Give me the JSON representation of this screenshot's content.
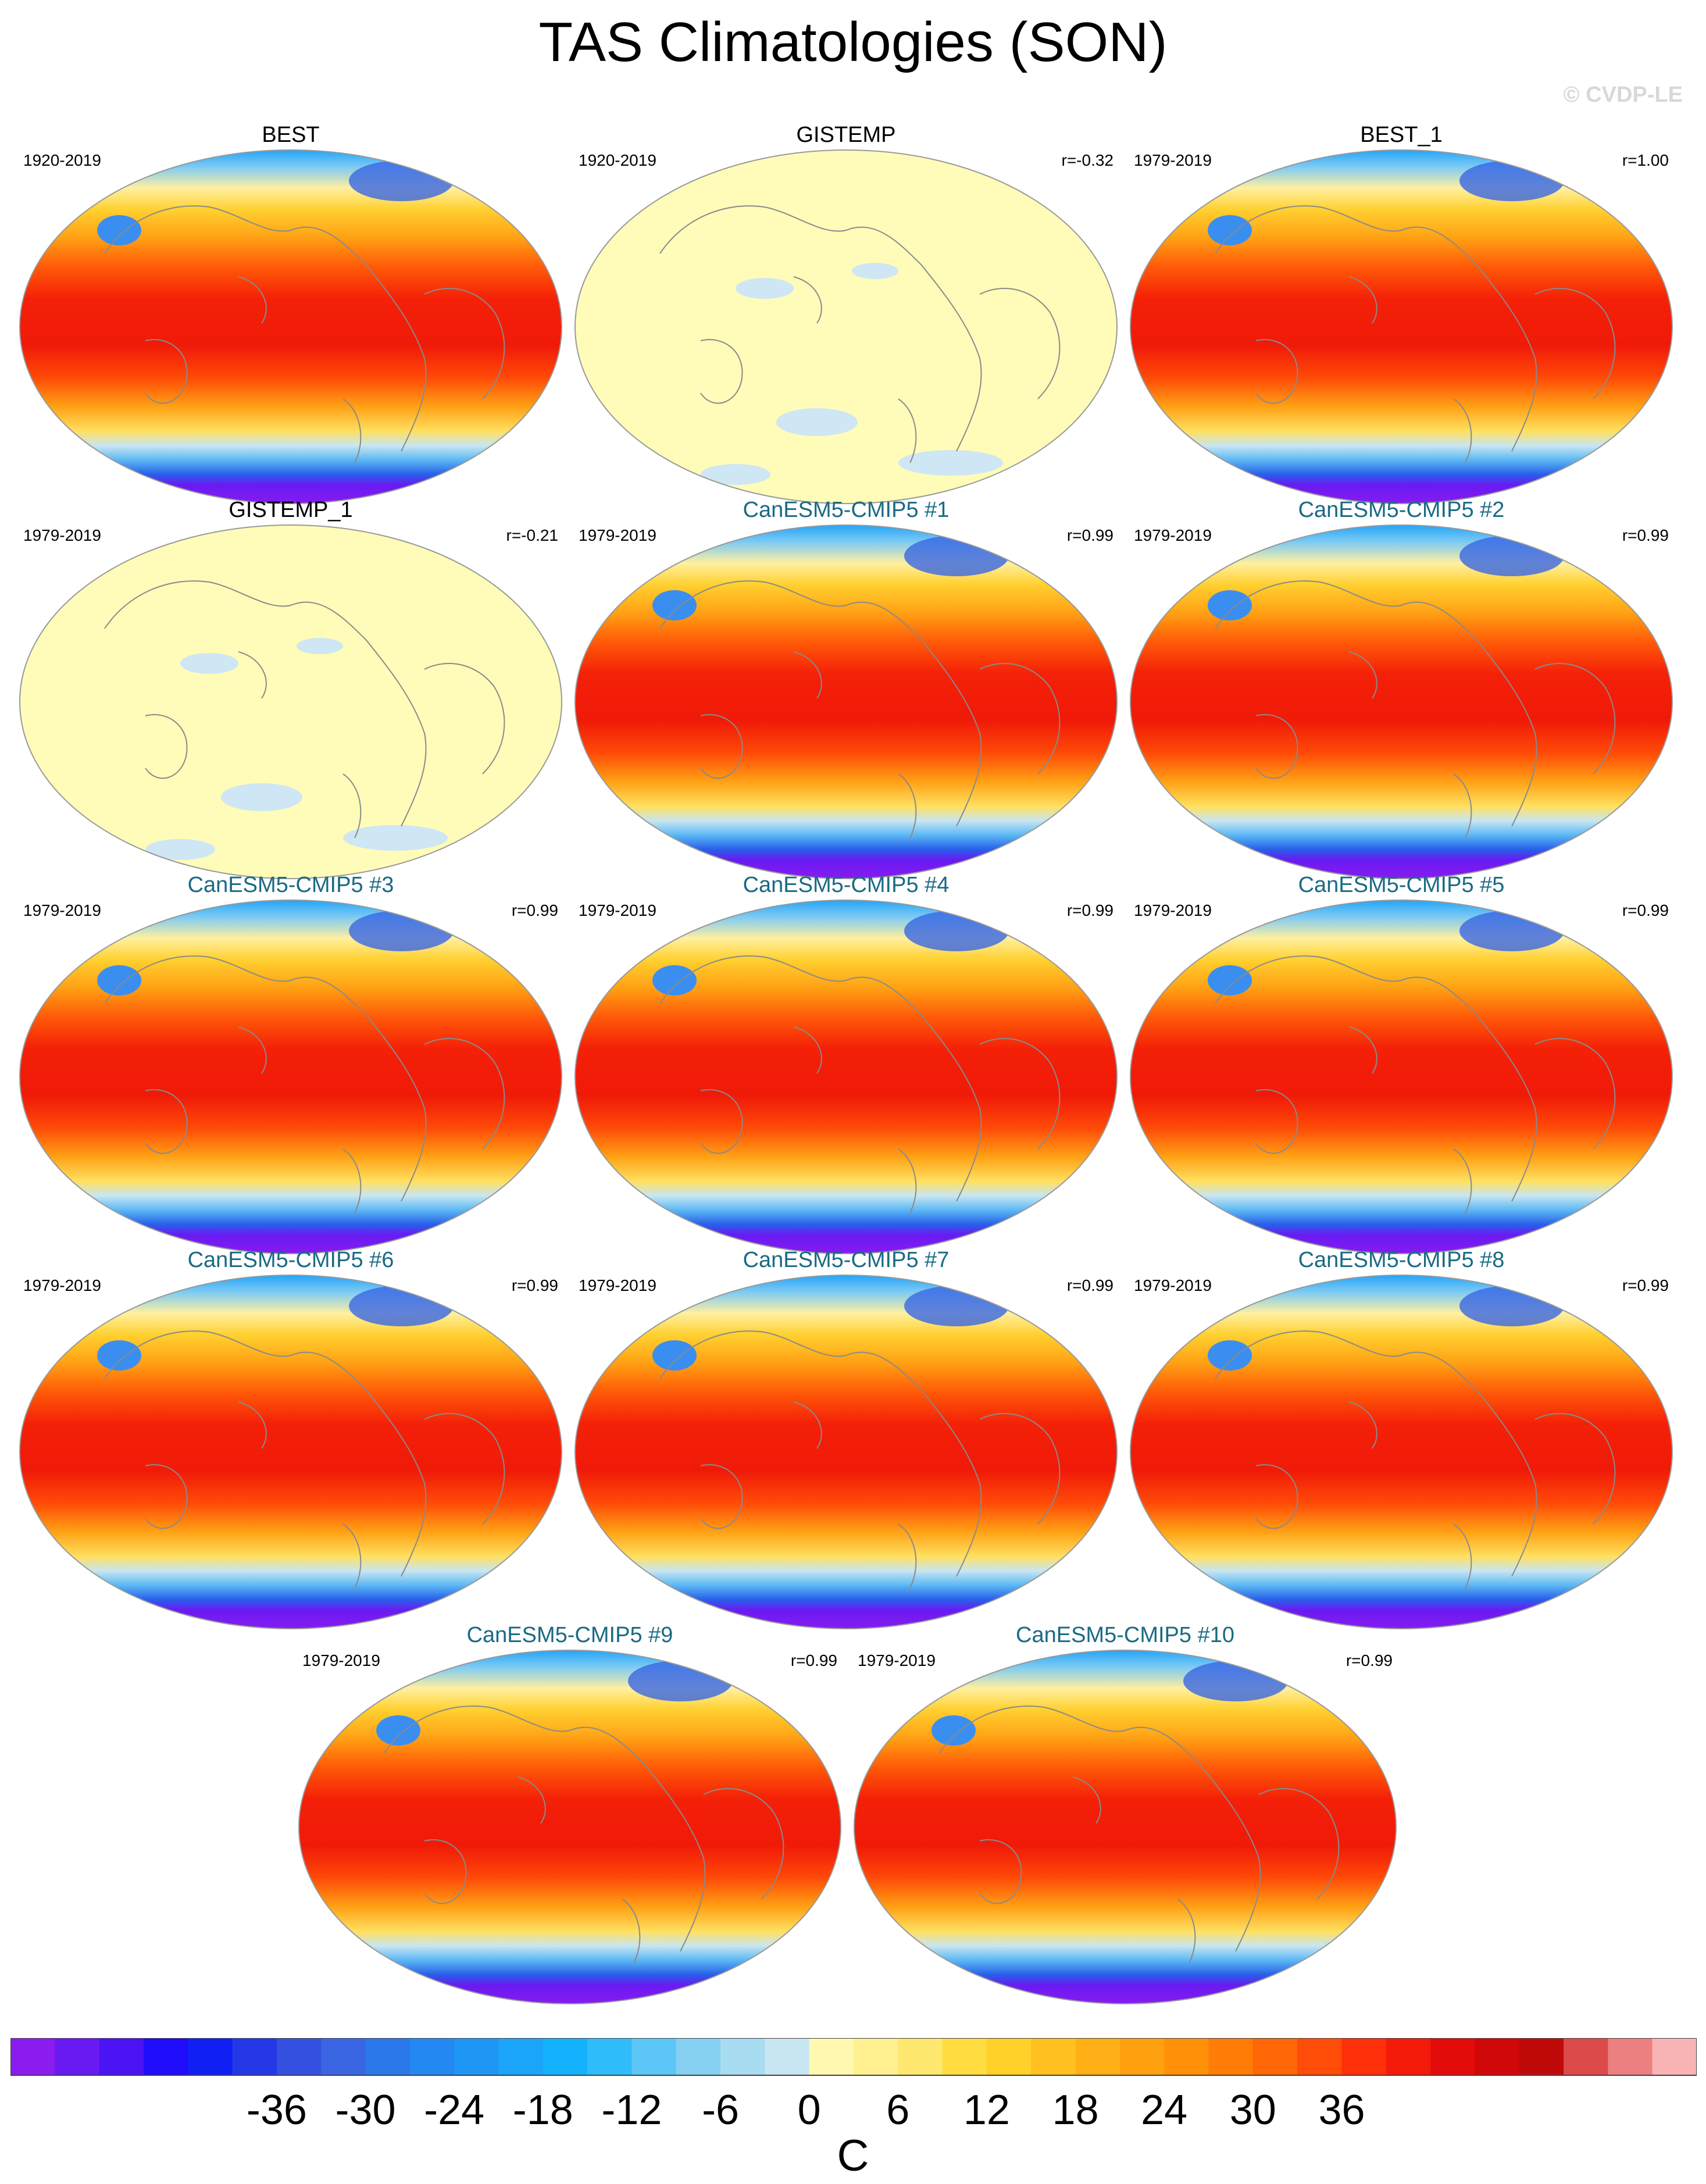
{
  "title": "TAS Climatologies (SON)",
  "credit": "© CVDP-LE",
  "panels": [
    {
      "name": "BEST",
      "period": "1920-2019",
      "r": "",
      "kind": "obs",
      "field": "full"
    },
    {
      "name": "GISTEMP",
      "period": "1920-2019",
      "r": "r=-0.32",
      "kind": "obs",
      "field": "sparse"
    },
    {
      "name": "BEST_1",
      "period": "1979-2019",
      "r": "r=1.00",
      "kind": "obs",
      "field": "full"
    },
    {
      "name": "GISTEMP_1",
      "period": "1979-2019",
      "r": "r=-0.21",
      "kind": "obs",
      "field": "sparse"
    },
    {
      "name": "CanESM5-CMIP5 #1",
      "period": "1979-2019",
      "r": "r=0.99",
      "kind": "model",
      "field": "full"
    },
    {
      "name": "CanESM5-CMIP5 #2",
      "period": "1979-2019",
      "r": "r=0.99",
      "kind": "model",
      "field": "full"
    },
    {
      "name": "CanESM5-CMIP5 #3",
      "period": "1979-2019",
      "r": "r=0.99",
      "kind": "model",
      "field": "full"
    },
    {
      "name": "CanESM5-CMIP5 #4",
      "period": "1979-2019",
      "r": "r=0.99",
      "kind": "model",
      "field": "full"
    },
    {
      "name": "CanESM5-CMIP5 #5",
      "period": "1979-2019",
      "r": "r=0.99",
      "kind": "model",
      "field": "full"
    },
    {
      "name": "CanESM5-CMIP5 #6",
      "period": "1979-2019",
      "r": "r=0.99",
      "kind": "model",
      "field": "full"
    },
    {
      "name": "CanESM5-CMIP5 #7",
      "period": "1979-2019",
      "r": "r=0.99",
      "kind": "model",
      "field": "full"
    },
    {
      "name": "CanESM5-CMIP5 #8",
      "period": "1979-2019",
      "r": "r=0.99",
      "kind": "model",
      "field": "full"
    },
    {
      "name": "CanESM5-CMIP5 #9",
      "period": "1979-2019",
      "r": "r=0.99",
      "kind": "model",
      "field": "full"
    },
    {
      "name": "CanESM5-CMIP5 #10",
      "period": "1979-2019",
      "r": "r=0.99",
      "kind": "model",
      "field": "full"
    }
  ],
  "colorbar": {
    "unit": "C",
    "tick_labels": [
      "-36",
      "-30",
      "-24",
      "-18",
      "-12",
      "-6",
      "0",
      "6",
      "12",
      "18",
      "24",
      "30",
      "36"
    ],
    "colors": [
      "#8a1cf0",
      "#6a1af2",
      "#4a14f5",
      "#1e0cfb",
      "#1020f5",
      "#2438e8",
      "#3450e0",
      "#3a66e4",
      "#2a78ea",
      "#2488f2",
      "#1e96f6",
      "#1aa4fa",
      "#14b2fc",
      "#30bcfa",
      "#5cc6f6",
      "#86d0f2",
      "#a8dcf0",
      "#c8e6f2",
      "#fff8b0",
      "#fff090",
      "#ffe870",
      "#ffdc40",
      "#ffd028",
      "#ffc020",
      "#ffb016",
      "#ffa00e",
      "#ff9008",
      "#ff7c06",
      "#ff6606",
      "#ff4c08",
      "#ff300a",
      "#f41a0a",
      "#e40c0a",
      "#d0080a",
      "#c00a0a",
      "#dc4a4a",
      "#ec8080",
      "#f8b4b4"
    ]
  }
}
